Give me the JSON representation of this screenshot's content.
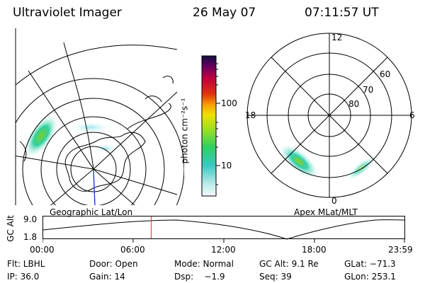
{
  "header": {
    "instrument": "Ultraviolet Imager",
    "date": "26 May 07",
    "time": "07:11:57 UT"
  },
  "colorbar": {
    "label": "photon cm⁻²s⁻¹",
    "ticks": [
      "100",
      "10"
    ]
  },
  "left_map": {
    "caption": "Geographic Lat/Lon"
  },
  "right_map": {
    "caption": "Apex MLat/MLT",
    "mlt_labels": {
      "top": "12",
      "left": "18",
      "right": "6",
      "bottom": "0"
    },
    "lat_labels": [
      "60",
      "70",
      "80"
    ]
  },
  "altitude_plot": {
    "ylabel": "GC Alt",
    "yticks": [
      "9.0",
      "1.8"
    ],
    "xticks": [
      "00:00",
      "06:00",
      "12:00",
      "18:00",
      "23:59"
    ],
    "marker_time": "07:11:57",
    "marker_color": "#e03030"
  },
  "info": {
    "flt": "Flt: LBHL",
    "door": "Door: Open",
    "mode": "Mode: Normal",
    "gc_alt": "GC Alt: 9.1 Re",
    "glat": "GLat: −71.3",
    "ip": "IP: 36.0",
    "gain": "Gain: 14",
    "dsp": "Dsp:    −1.9",
    "seq": "Seq: 39",
    "glon": "GLon: 253.1"
  }
}
